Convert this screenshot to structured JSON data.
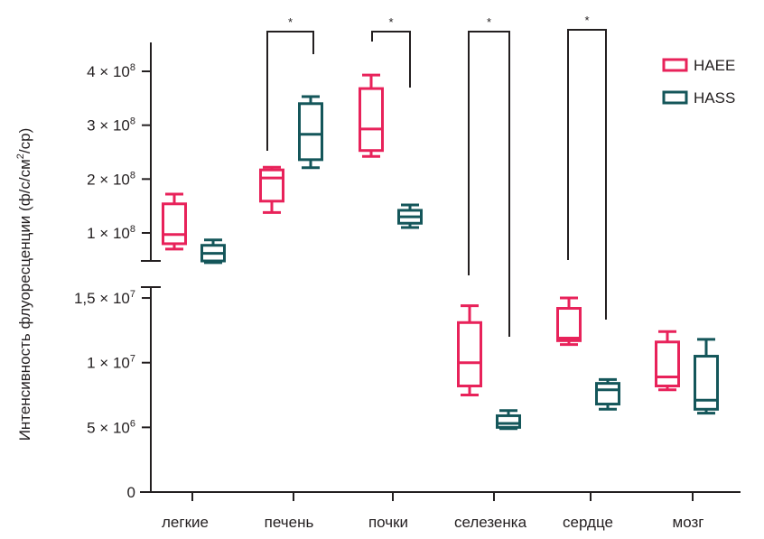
{
  "chart_data": {
    "type": "box",
    "title": "",
    "xlabel": "",
    "ylabel": "Интенсивность флуоресценции (ф/с/см²/ср)",
    "ylabel_parts": {
      "main": "Интенсивность флуоресценции (ф/с/см",
      "sup": "2",
      "tail": "/ср)"
    },
    "categories": [
      "легкие",
      "печень",
      "почки",
      "селезенка",
      "сердце",
      "мозг"
    ],
    "colors": {
      "HAEE": "#e8225a",
      "HASS": "#14565a",
      "axis": "#231f20"
    },
    "axis_break": true,
    "upper_axis": {
      "ylim": [
        50000000,
        450000000
      ],
      "ticks": [
        {
          "value": 100000000,
          "mantissa": "1",
          "exp": "8"
        },
        {
          "value": 200000000,
          "mantissa": "2",
          "exp": "8"
        },
        {
          "value": 300000000,
          "mantissa": "3",
          "exp": "8"
        },
        {
          "value": 400000000,
          "mantissa": "4",
          "exp": "8"
        }
      ]
    },
    "lower_axis": {
      "ylim": [
        0,
        16000000
      ],
      "ticks": [
        {
          "value": 0,
          "mantissa": "0",
          "exp": ""
        },
        {
          "value": 5000000,
          "mantissa": "5",
          "exp": "6"
        },
        {
          "value": 10000000,
          "mantissa": "1",
          "exp": "7"
        },
        {
          "value": 15000000,
          "mantissa": "1,5",
          "exp": "7"
        }
      ]
    },
    "times_sign": "×",
    "base": "10",
    "legend": {
      "position": "top-right",
      "entries": [
        "HAEE",
        "HASS"
      ]
    },
    "series": [
      {
        "name": "HAEE",
        "boxes": [
          {
            "category": "легкие",
            "panel": "upper",
            "min": 70000000,
            "q1": 80000000,
            "median": 97000000,
            "q3": 154000000,
            "max": 172000000
          },
          {
            "category": "печень",
            "panel": "upper",
            "min": 138000000,
            "q1": 159000000,
            "median": 202000000,
            "q3": 217000000,
            "max": 222000000
          },
          {
            "category": "почки",
            "panel": "upper",
            "min": 242000000,
            "q1": 253000000,
            "median": 293000000,
            "q3": 368000000,
            "max": 393000000
          },
          {
            "category": "селезенка",
            "panel": "lower",
            "min": 7500000,
            "q1": 8200000,
            "median": 10000000,
            "q3": 13100000,
            "max": 14400000
          },
          {
            "category": "сердце",
            "panel": "lower",
            "min": 11400000,
            "q1": 11700000,
            "median": 11900000,
            "q3": 14200000,
            "max": 15000000
          },
          {
            "category": "мозг",
            "panel": "lower",
            "min": 7900000,
            "q1": 8200000,
            "median": 8900000,
            "q3": 11600000,
            "max": 12400000
          }
        ]
      },
      {
        "name": "HASS",
        "boxes": [
          {
            "category": "легкие",
            "panel": "upper",
            "min": 45000000,
            "q1": 48000000,
            "median": 62000000,
            "q3": 77000000,
            "max": 87000000
          },
          {
            "category": "печень",
            "panel": "upper",
            "min": 221000000,
            "q1": 236000000,
            "median": 283000000,
            "q3": 340000000,
            "max": 353000000
          },
          {
            "category": "почки",
            "panel": "upper",
            "min": 110000000,
            "q1": 118000000,
            "median": 130000000,
            "q3": 142000000,
            "max": 152000000
          },
          {
            "category": "селезенка",
            "panel": "lower",
            "min": 4900000,
            "q1": 5000000,
            "median": 5300000,
            "q3": 5900000,
            "max": 6300000
          },
          {
            "category": "сердце",
            "panel": "lower",
            "min": 6400000,
            "q1": 6800000,
            "median": 7900000,
            "q3": 8400000,
            "max": 8700000
          },
          {
            "category": "мозг",
            "panel": "lower",
            "min": 6100000,
            "q1": 6400000,
            "median": 7100000,
            "q3": 10500000,
            "max": 11800000
          }
        ]
      }
    ],
    "significance": [
      {
        "category": "печень",
        "label": "*"
      },
      {
        "category": "почки",
        "label": "*"
      },
      {
        "category": "селезенка",
        "label": "*"
      },
      {
        "category": "сердце",
        "label": "*"
      }
    ]
  }
}
